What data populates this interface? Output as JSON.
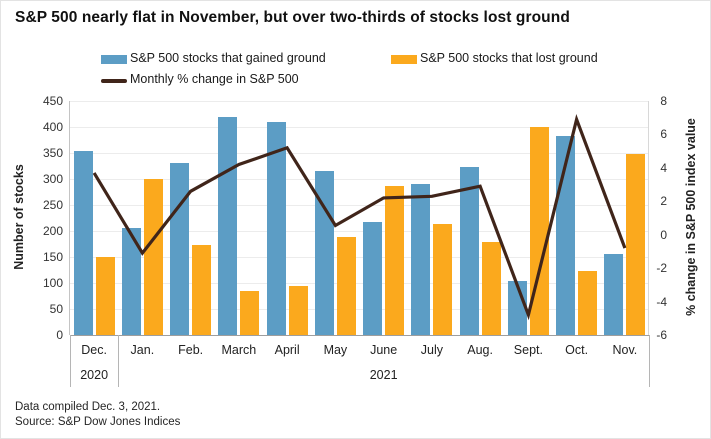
{
  "title": "S&P 500 nearly flat in November, but over two-thirds of stocks lost ground",
  "footer": {
    "line1": "Data compiled Dec. 3, 2021.",
    "line2": "Source: S&P Dow Jones Indices"
  },
  "colors": {
    "gained_blue": "#5C9DC5",
    "lost_orange": "#FBA91D",
    "line_brown": "#40251A",
    "grid": "#ececec",
    "axis": "#9e9e9e"
  },
  "chart_data": {
    "type": "bar",
    "subtype": "grouped-bars-with-line-overlay",
    "title": "S&P 500 nearly flat in November, but over two-thirds of stocks lost ground",
    "categories": [
      "Dec.",
      "Jan.",
      "Feb.",
      "March",
      "April",
      "May",
      "June",
      "July",
      "Aug.",
      "Sept.",
      "Oct.",
      "Nov."
    ],
    "year_groups": [
      {
        "label": "2020",
        "start": 0,
        "end": 0
      },
      {
        "label": "2021",
        "start": 1,
        "end": 11
      }
    ],
    "series": [
      {
        "name": "S&P 500 stocks that gained ground",
        "type": "bar",
        "axis": "left",
        "color": "#5C9DC5",
        "values": [
          353,
          206,
          330,
          420,
          410,
          316,
          217,
          290,
          324,
          104,
          382,
          156
        ]
      },
      {
        "name": "S&P 500 stocks that lost ground",
        "type": "bar",
        "axis": "left",
        "color": "#FBA91D",
        "values": [
          150,
          300,
          173,
          85,
          94,
          188,
          287,
          213,
          178,
          400,
          123,
          349
        ]
      },
      {
        "name": "Monthly % change in S&P 500",
        "type": "line",
        "axis": "right",
        "color": "#40251A",
        "values": [
          3.7,
          -1.1,
          2.6,
          4.2,
          5.2,
          0.55,
          2.2,
          2.3,
          2.9,
          -4.8,
          6.9,
          -0.8
        ]
      }
    ],
    "left_axis": {
      "label": "Number of stocks",
      "min": 0,
      "max": 450,
      "tick_step": 50,
      "ticks": [
        450,
        400,
        350,
        300,
        250,
        200,
        150,
        100,
        50,
        0
      ]
    },
    "right_axis": {
      "label": "% change in S&P 500 index value",
      "min": -6,
      "max": 8,
      "tick_step": 2,
      "ticks": [
        8,
        6,
        4,
        2,
        0,
        -2,
        -4,
        -6
      ]
    },
    "grid": true,
    "legend_position": "top"
  }
}
